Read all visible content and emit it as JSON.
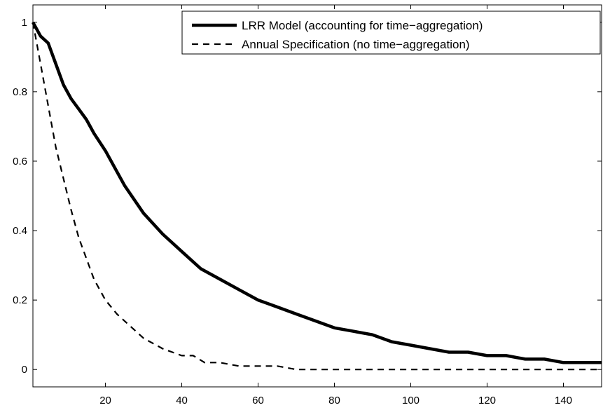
{
  "chart_data": {
    "type": "line",
    "title": "",
    "xlabel": "",
    "ylabel": "",
    "xlim": [
      1,
      150
    ],
    "ylim": [
      -0.05,
      1.05
    ],
    "xticks": [
      20,
      40,
      60,
      80,
      100,
      120,
      140
    ],
    "yticks": [
      0,
      0.2,
      0.4,
      0.6,
      0.8,
      1
    ],
    "xtick_labels": [
      "20",
      "40",
      "60",
      "80",
      "100",
      "120",
      "140"
    ],
    "ytick_labels": [
      "0",
      "0.2",
      "0.4",
      "0.6",
      "0.8",
      "1"
    ],
    "grid": false,
    "legend_position": "top-right",
    "series": [
      {
        "name": "LRR Model (accounting for time−aggregation)",
        "style": "solid",
        "x": [
          1,
          3,
          5,
          7,
          9,
          11,
          13,
          15,
          17,
          20,
          25,
          30,
          35,
          40,
          45,
          50,
          55,
          60,
          65,
          70,
          75,
          80,
          85,
          90,
          95,
          100,
          105,
          110,
          115,
          120,
          125,
          130,
          135,
          140,
          145,
          150
        ],
        "y": [
          1.0,
          0.96,
          0.94,
          0.88,
          0.82,
          0.78,
          0.75,
          0.72,
          0.68,
          0.63,
          0.53,
          0.45,
          0.39,
          0.34,
          0.29,
          0.26,
          0.23,
          0.2,
          0.18,
          0.16,
          0.14,
          0.12,
          0.11,
          0.1,
          0.08,
          0.07,
          0.06,
          0.05,
          0.05,
          0.04,
          0.04,
          0.03,
          0.03,
          0.02,
          0.02,
          0.02
        ]
      },
      {
        "name": "Annual Specification (no time−aggregation)",
        "style": "dashed",
        "x": [
          1,
          3,
          5,
          7,
          9,
          11,
          13,
          15,
          17,
          20,
          23,
          26,
          30,
          35,
          40,
          43,
          46,
          50,
          55,
          60,
          65,
          70,
          75,
          80,
          85,
          90,
          95,
          100,
          105,
          110,
          115,
          120,
          125,
          130,
          135,
          140,
          145,
          150
        ],
        "y": [
          1.0,
          0.88,
          0.76,
          0.64,
          0.55,
          0.46,
          0.38,
          0.32,
          0.26,
          0.2,
          0.16,
          0.13,
          0.09,
          0.06,
          0.04,
          0.04,
          0.02,
          0.02,
          0.01,
          0.01,
          0.01,
          0.0,
          0.0,
          0.0,
          0.0,
          0.0,
          0.0,
          0.0,
          0.0,
          0.0,
          0.0,
          0.0,
          0.0,
          0.0,
          0.0,
          0.0,
          0.0,
          0.0
        ]
      }
    ]
  }
}
